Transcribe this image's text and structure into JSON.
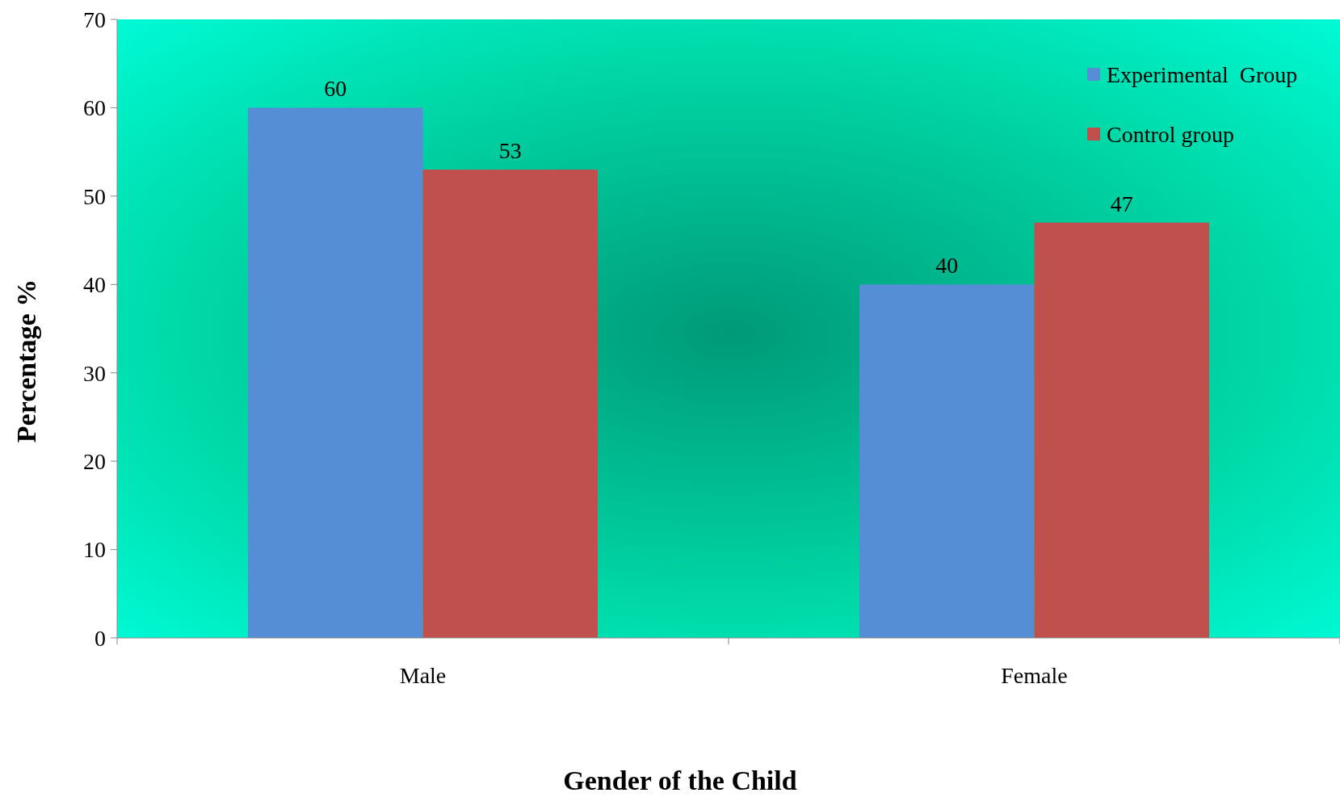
{
  "chart_data": {
    "type": "bar",
    "xlabel": "Gender of the Child",
    "ylabel": "Percentage %",
    "categories": [
      "Male",
      "Female"
    ],
    "series": [
      {
        "name": "Experimental  Group",
        "color": "#558ed5",
        "values": [
          60,
          40
        ]
      },
      {
        "name": "Control group",
        "color": "#c0504d",
        "values": [
          53,
          47
        ]
      }
    ],
    "ylim": [
      0,
      70
    ],
    "yticks": [
      0,
      10,
      20,
      30,
      40,
      50,
      60,
      70
    ],
    "data_labels": true,
    "legend": "top right",
    "grid": false
  }
}
